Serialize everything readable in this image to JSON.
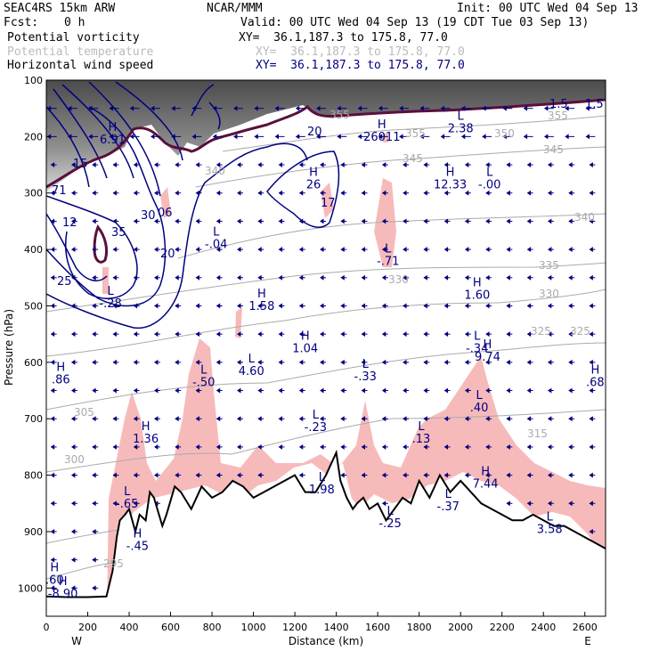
{
  "header": {
    "model": "SEAC4RS 15km ARW",
    "center": "NCAR/MMM",
    "init": "Init: 00 UTC Wed 04 Sep 13",
    "fcst_label": "Fcst:",
    "fcst_value": "0 h",
    "valid": "Valid: 00 UTC Wed 04 Sep 13 (19 CDT Tue 03 Sep 13)"
  },
  "fields": [
    {
      "name": "Potential vorticity",
      "xy": "XY=  36.1,187.3 to 175.8, 77.0",
      "color": "#000000"
    },
    {
      "name": "Potential temperature",
      "xy": "XY=  36.1,187.3 to 175.8, 77.0",
      "color": "#bbbbbb"
    },
    {
      "name": "Horizontal wind speed",
      "xy": "XY=  36.1,187.3 to 175.8, 77.0",
      "color": "#000080"
    }
  ],
  "colors": {
    "pv_shading": "#555555",
    "moisture_fill": "#f7baba",
    "theta_contour": "#aaaaaa",
    "wind_contour": "#000080",
    "pv_contour": "#5a0f3c",
    "terrain": "#000000"
  },
  "chart_data": {
    "type": "cross-section",
    "xlabel": "Distance (km)",
    "ylabel": "Pressure (hPa)",
    "xlim": [
      0,
      2700
    ],
    "ylim": [
      1050,
      100
    ],
    "x_ticks": [
      "0",
      "200",
      "400",
      "600",
      "800",
      "1000",
      "1200",
      "1400",
      "1600",
      "1800",
      "2000",
      "2200",
      "2400",
      "2600"
    ],
    "y_ticks": [
      "100",
      "200",
      "300",
      "400",
      "500",
      "600",
      "700",
      "800",
      "900",
      "1000"
    ],
    "x_end_labels": {
      "left": "W",
      "right": "E"
    },
    "terrain": {
      "x": [
        0,
        100,
        200,
        290,
        320,
        340,
        355,
        380,
        400,
        430,
        450,
        480,
        500,
        520,
        560,
        580,
        620,
        650,
        700,
        750,
        800,
        850,
        900,
        950,
        1000,
        1050,
        1100,
        1150,
        1200,
        1250,
        1300,
        1350,
        1400,
        1420,
        1450,
        1480,
        1500,
        1530,
        1560,
        1600,
        1640,
        1680,
        1720,
        1760,
        1800,
        1850,
        1900,
        1950,
        2000,
        2050,
        2100,
        2150,
        2200,
        2250,
        2300,
        2350,
        2400,
        2450,
        2500,
        2550,
        2600,
        2650,
        2700
      ],
      "pressure": [
        1015,
        1016,
        1016,
        1015,
        970,
        910,
        880,
        870,
        860,
        900,
        870,
        880,
        830,
        840,
        890,
        870,
        820,
        830,
        860,
        820,
        840,
        830,
        810,
        820,
        840,
        830,
        820,
        810,
        800,
        830,
        830,
        800,
        760,
        810,
        840,
        860,
        850,
        840,
        860,
        850,
        880,
        860,
        840,
        850,
        810,
        840,
        800,
        830,
        810,
        830,
        850,
        860,
        870,
        880,
        880,
        870,
        880,
        890,
        890,
        900,
        910,
        920,
        930
      ]
    },
    "wind_speed_contours": [
      "20",
      "25",
      "30",
      "35",
      "20",
      "20",
      "30",
      "35",
      "25"
    ],
    "theta_contours": [
      "355",
      "350",
      "345",
      "340",
      "335",
      "330",
      "325",
      "325",
      "315",
      "305",
      "300",
      "295",
      "290",
      "340",
      "350"
    ],
    "pv_contours": [
      "1.5",
      "1.5",
      "1.5",
      "0"
    ],
    "highs_lows": [
      {
        "kind": "H",
        "x": 1620,
        "p": 185,
        "value": "26011"
      },
      {
        "kind": "H",
        "x": 320,
        "p": 190,
        "value": "6.91"
      },
      {
        "kind": "L",
        "x": 2000,
        "p": 170,
        "value": "2.38"
      },
      {
        "kind": "H",
        "x": 1950,
        "p": 270,
        "value": "12.33"
      },
      {
        "kind": "L",
        "x": 2140,
        "p": 270,
        "value": "-.00"
      },
      {
        "kind": "H",
        "x": 1290,
        "p": 270,
        "value": "26"
      },
      {
        "kind": "L",
        "x": 820,
        "p": 375,
        "value": "-.04"
      },
      {
        "kind": "L",
        "x": 1650,
        "p": 405,
        "value": "-.71"
      },
      {
        "kind": "L",
        "x": 310,
        "p": 480,
        "value": "-.28"
      },
      {
        "kind": "H",
        "x": 1040,
        "p": 485,
        "value": "1.58"
      },
      {
        "kind": "H",
        "x": 2080,
        "p": 465,
        "value": "1.60"
      },
      {
        "kind": "H",
        "x": 1250,
        "p": 560,
        "value": "1.04"
      },
      {
        "kind": "L",
        "x": 2080,
        "p": 560,
        "value": "-.34"
      },
      {
        "kind": "H",
        "x": 2130,
        "p": 575,
        "value": "9.74"
      },
      {
        "kind": "H",
        "x": 70,
        "p": 615,
        "value": ".86"
      },
      {
        "kind": "L",
        "x": 990,
        "p": 600,
        "value": "4.60"
      },
      {
        "kind": "L",
        "x": 760,
        "p": 620,
        "value": "-.50"
      },
      {
        "kind": "L",
        "x": 1540,
        "p": 610,
        "value": "-.33"
      },
      {
        "kind": "L",
        "x": 2090,
        "p": 665,
        "value": ".40"
      },
      {
        "kind": "H",
        "x": 2650,
        "p": 620,
        "value": ".68"
      },
      {
        "kind": "L",
        "x": 1300,
        "p": 700,
        "value": "-.23"
      },
      {
        "kind": "H",
        "x": 480,
        "p": 720,
        "value": "1.36"
      },
      {
        "kind": "L",
        "x": 1810,
        "p": 720,
        "value": ".13"
      },
      {
        "kind": "H",
        "x": 2120,
        "p": 800,
        "value": "7.44"
      },
      {
        "kind": "L",
        "x": 1330,
        "p": 810,
        "value": "1.98"
      },
      {
        "kind": "L",
        "x": 390,
        "p": 835,
        "value": "-.65"
      },
      {
        "kind": "L",
        "x": 1940,
        "p": 840,
        "value": "-.37"
      },
      {
        "kind": "L",
        "x": 1660,
        "p": 870,
        "value": "-.25"
      },
      {
        "kind": "L",
        "x": 2430,
        "p": 880,
        "value": "3.58"
      },
      {
        "kind": "H",
        "x": 440,
        "p": 910,
        "value": "-.45"
      },
      {
        "kind": "H",
        "x": 40,
        "p": 970,
        "value": ".60"
      },
      {
        "kind": "H",
        "x": 80,
        "p": 995,
        "value": "-8.90"
      }
    ]
  }
}
